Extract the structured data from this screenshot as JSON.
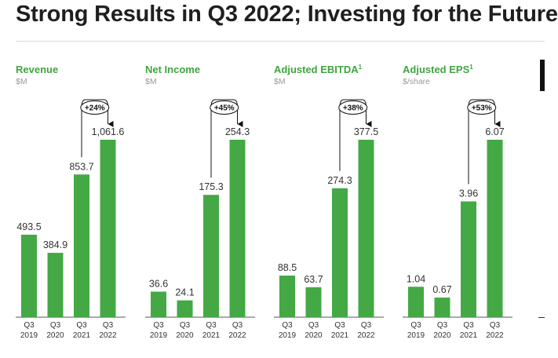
{
  "page": {
    "title": "Strong Results in Q3 2022; Investing for the Future"
  },
  "colors": {
    "bar": "#44a845",
    "title_green": "#3fa540",
    "unit_gray": "#9a9a9a"
  },
  "chart_data": [
    {
      "type": "bar",
      "title": "Revenue",
      "title_sup": "",
      "unit": "$M",
      "categories": [
        "Q3\n2019",
        "Q3\n2020",
        "Q3\n2021",
        "Q3\n2022"
      ],
      "values": [
        493.5,
        384.9,
        853.7,
        1061.6
      ],
      "value_labels": [
        "493.5",
        "384.9",
        "853.7",
        "1,061.6"
      ],
      "growth": "+24%",
      "ylim": [
        0,
        1061.6
      ]
    },
    {
      "type": "bar",
      "title": "Net Income",
      "title_sup": "",
      "unit": "$M",
      "categories": [
        "Q3\n2019",
        "Q3\n2020",
        "Q3\n2021",
        "Q3\n2022"
      ],
      "values": [
        36.6,
        24.1,
        175.3,
        254.3
      ],
      "value_labels": [
        "36.6",
        "24.1",
        "175.3",
        "254.3"
      ],
      "growth": "+45%",
      "ylim": [
        0,
        254.3
      ]
    },
    {
      "type": "bar",
      "title": "Adjusted EBITDA",
      "title_sup": "1",
      "unit": "$M",
      "categories": [
        "Q3\n2019",
        "Q3\n2020",
        "Q3\n2021",
        "Q3\n2022"
      ],
      "values": [
        88.5,
        63.7,
        274.3,
        377.5
      ],
      "value_labels": [
        "88.5",
        "63.7",
        "274.3",
        "377.5"
      ],
      "growth": "+38%",
      "ylim": [
        0,
        377.5
      ]
    },
    {
      "type": "bar",
      "title": "Adjusted EPS",
      "title_sup": "1",
      "unit": "$/share",
      "categories": [
        "Q3\n2019",
        "Q3\n2020",
        "Q3\n2021",
        "Q3\n2022"
      ],
      "values": [
        1.04,
        0.67,
        3.96,
        6.07
      ],
      "value_labels": [
        "1.04",
        "0.67",
        "3.96",
        "6.07"
      ],
      "growth": "+53%",
      "ylim": [
        0,
        6.07
      ]
    }
  ]
}
